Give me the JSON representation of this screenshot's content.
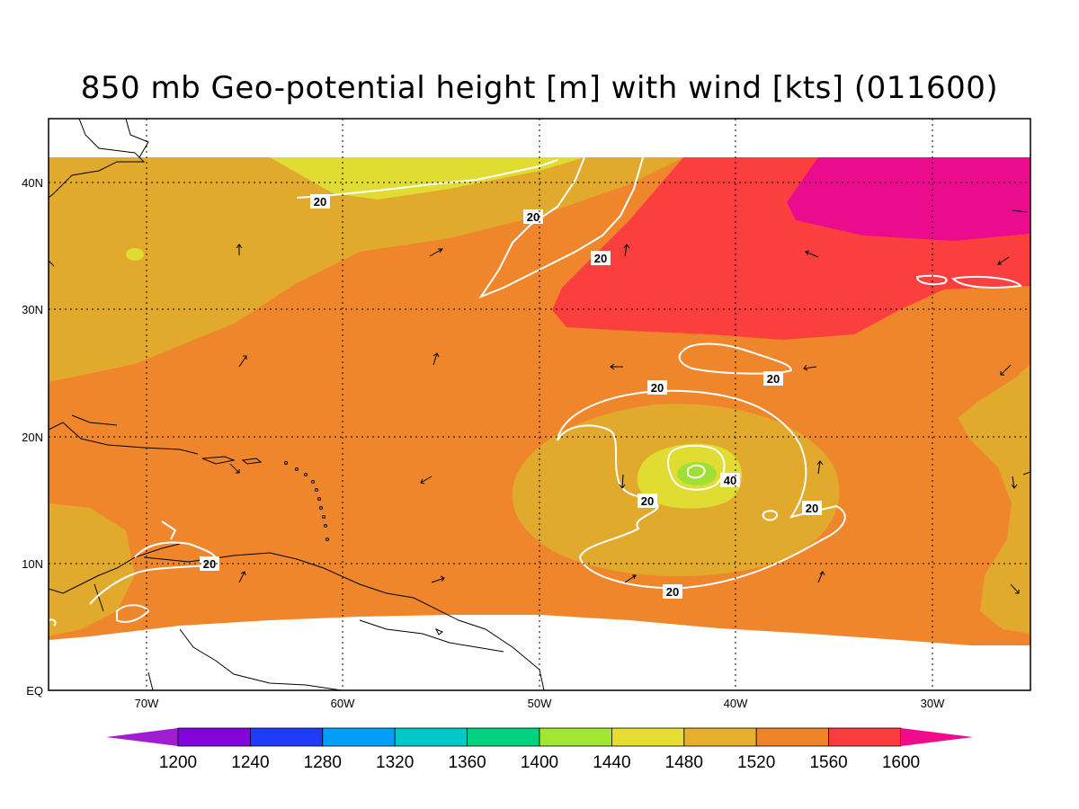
{
  "title": "850 mb Geo-potential height [m] with wind [kts] (011600)",
  "map": {
    "lon_ticks": [
      "70W",
      "60W",
      "50W",
      "40W",
      "30W"
    ],
    "lat_ticks": [
      "40N",
      "30N",
      "20N",
      "10N",
      "EQ"
    ],
    "contour_labels": [
      "20",
      "20",
      "20",
      "20",
      "20",
      "20",
      "40",
      "20",
      "20",
      "20"
    ],
    "fill_colors": {
      "1440": "#9fe036",
      "1480": "#e1dc32",
      "1520": "#e2aa2c",
      "1560": "#ef862c",
      "1600": "#fb3f3f",
      "above": "#eb0b8d"
    }
  },
  "colorbar": {
    "labels": [
      "1200",
      "1240",
      "1280",
      "1320",
      "1360",
      "1400",
      "1440",
      "1480",
      "1520",
      "1560",
      "1600"
    ],
    "colors": [
      "#a01dd2",
      "#8205db",
      "#1f3cfa",
      "#009dfa",
      "#00c8c8",
      "#00d282",
      "#a0e632",
      "#e6dc32",
      "#e6af2d",
      "#f08228",
      "#fa3c3c",
      "#f00a8c"
    ]
  }
}
